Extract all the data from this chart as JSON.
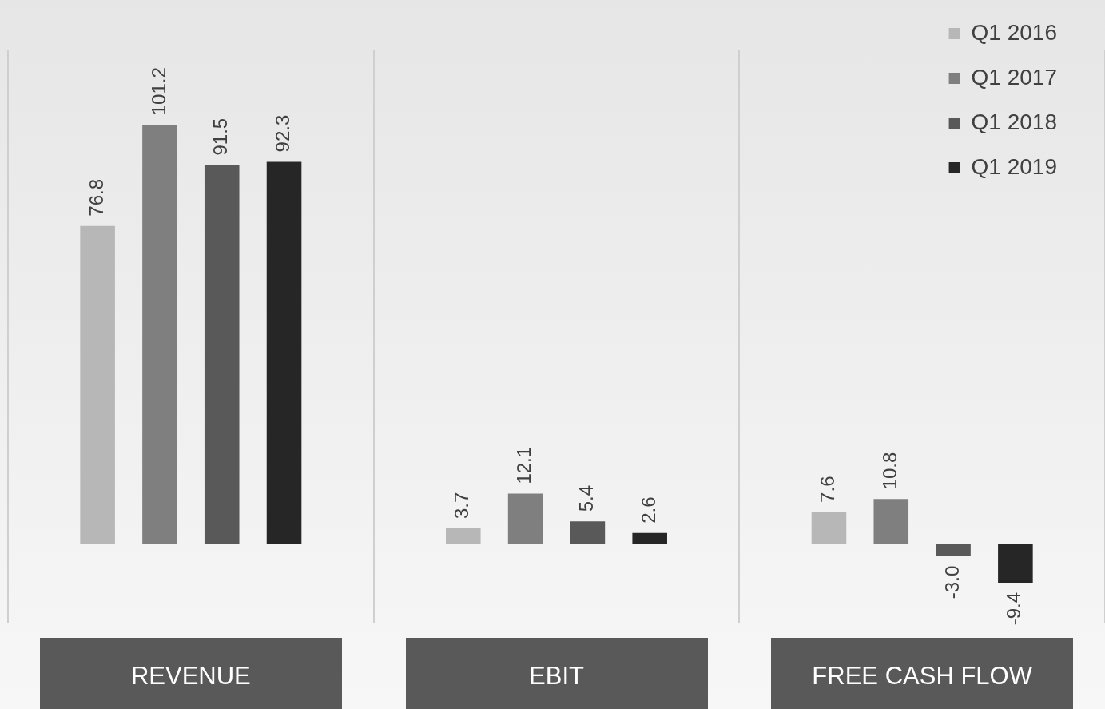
{
  "chart_data": {
    "type": "bar",
    "categories": [
      "REVENUE",
      "EBIT",
      "FREE CASH FLOW"
    ],
    "series": [
      {
        "name": "Q1 2016",
        "color": "#b7b7b7",
        "values": [
          76.8,
          3.7,
          7.6
        ],
        "value_labels": [
          "76.8",
          "3.7",
          "7.6"
        ]
      },
      {
        "name": "Q1 2017",
        "color": "#7f7f7f",
        "values": [
          101.2,
          12.1,
          10.8
        ],
        "value_labels": [
          "101.2",
          "12.1",
          "10.8"
        ]
      },
      {
        "name": "Q1 2018",
        "color": "#595959",
        "values": [
          91.5,
          5.4,
          -3.0
        ],
        "value_labels": [
          "91.5",
          "5.4",
          "-3.0"
        ]
      },
      {
        "name": "Q1 2019",
        "color": "#262626",
        "values": [
          92.3,
          2.6,
          -9.4
        ],
        "value_labels": [
          "92.3",
          "2.6",
          "-9.4"
        ]
      }
    ],
    "grid": "x",
    "legend": "top right"
  }
}
